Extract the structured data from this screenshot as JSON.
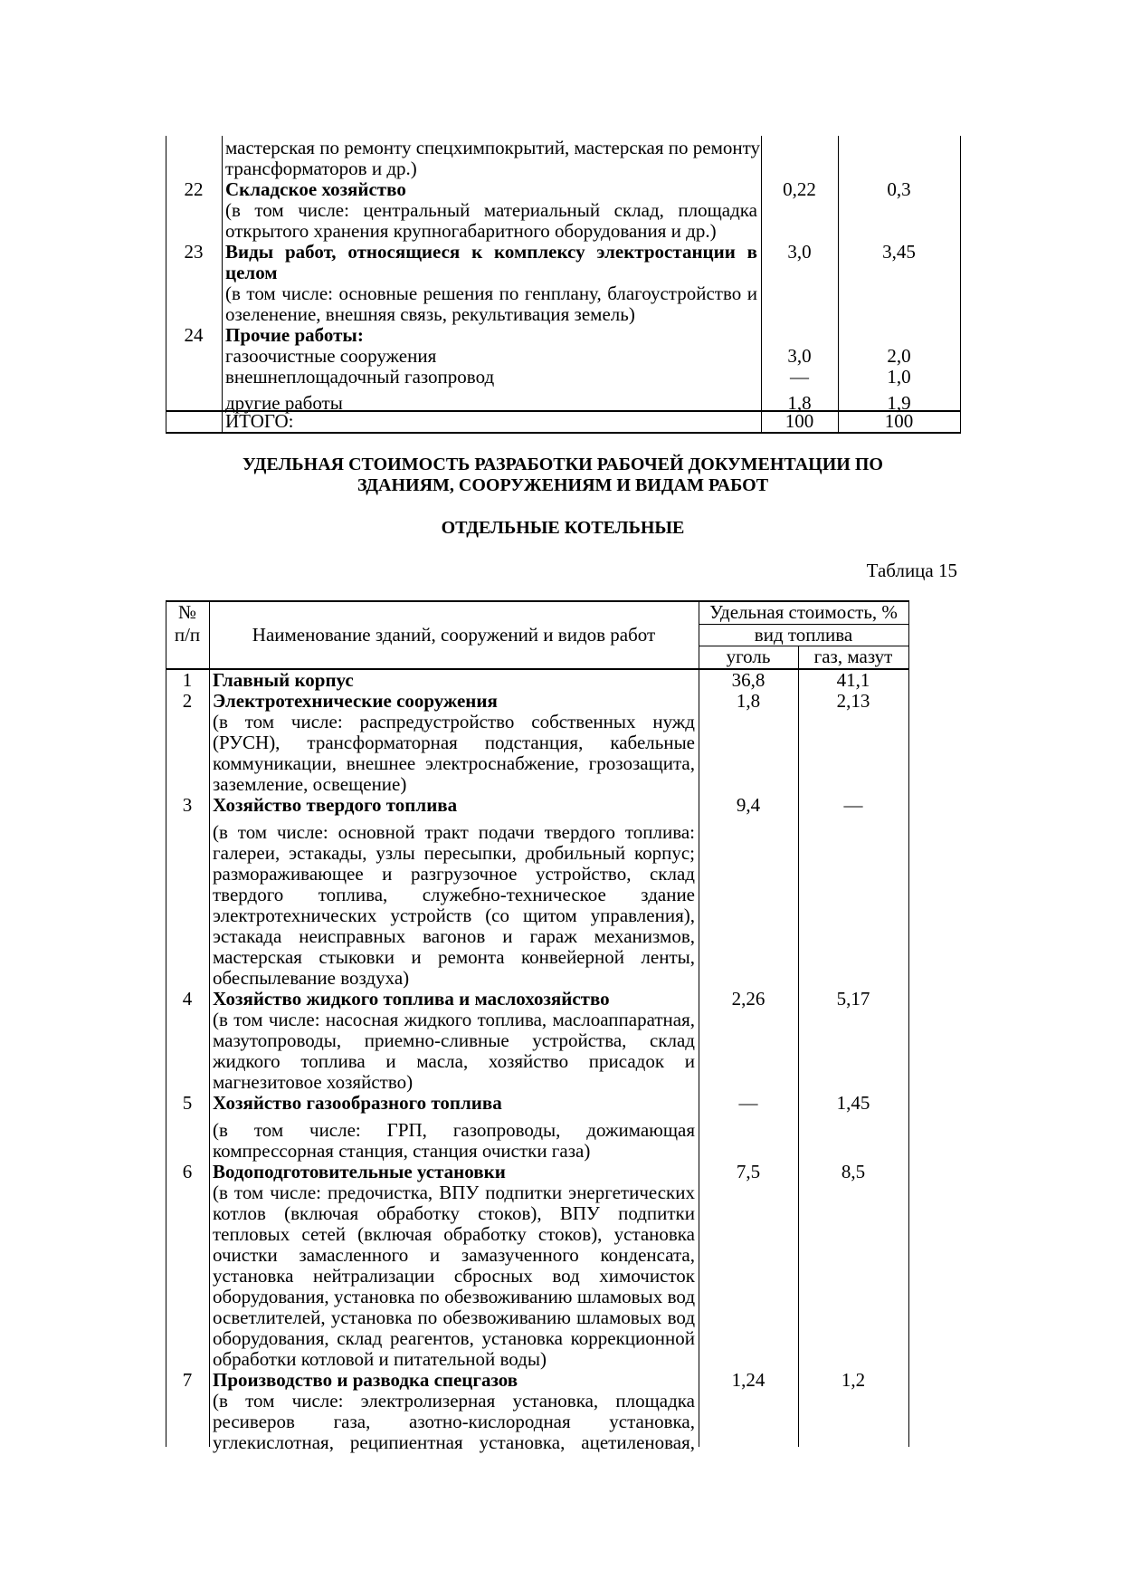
{
  "table_prev": {
    "lines": [
      {
        "n": "",
        "t": "мастерская по ремонту спецхимпокрытий, мастерская по ремонту",
        "b": false,
        "j": true,
        "c1": "",
        "c2": ""
      },
      {
        "n": "",
        "t": "трансформаторов и др.)",
        "b": false,
        "j": false,
        "c1": "",
        "c2": ""
      },
      {
        "n": "22",
        "t": "Складское хозяйство",
        "b": true,
        "j": false,
        "c1": "0,22",
        "c2": "0,3"
      },
      {
        "n": "",
        "t": "(в том числе: центральный материальный склад, площадка",
        "b": false,
        "j": true,
        "c1": "",
        "c2": ""
      },
      {
        "n": "",
        "t": "открытого хранения крупногабаритного оборудования и др.)",
        "b": false,
        "j": false,
        "c1": "",
        "c2": ""
      },
      {
        "n": "23",
        "t": "Виды работ, относящиеся к комплексу электростанции в",
        "b": true,
        "j": true,
        "c1": "3,0",
        "c2": "3,45"
      },
      {
        "n": "",
        "t": "целом",
        "b": true,
        "j": false,
        "c1": "",
        "c2": ""
      },
      {
        "n": "",
        "t": "(в том числе: основные решения по генплану, благоустройство и",
        "b": false,
        "j": true,
        "c1": "",
        "c2": ""
      },
      {
        "n": "",
        "t": "озеленение, внешняя связь, рекультивация земель)",
        "b": false,
        "j": false,
        "c1": "",
        "c2": ""
      },
      {
        "n": "24",
        "t": "Прочие работы:",
        "b": true,
        "j": false,
        "c1": "",
        "c2": ""
      },
      {
        "n": "",
        "t": "газоочистные сооружения",
        "b": false,
        "j": false,
        "c1": "3,0",
        "c2": "2,0"
      },
      {
        "n": "",
        "t": "внешнеплощадочный газопровод",
        "b": false,
        "j": false,
        "c1": "—",
        "c2": "1,0"
      },
      {
        "n": "",
        "t": "другие работы",
        "b": false,
        "j": false,
        "c1": "1,8",
        "c2": "1,9"
      }
    ],
    "total": {
      "label": "ИТОГО:",
      "c1": "100",
      "c2": "100"
    }
  },
  "heading": {
    "line1": "УДЕЛЬНАЯ СТОИМОСТЬ РАЗРАБОТКИ РАБОЧЕЙ ДОКУМЕНТАЦИИ ПО",
    "line2": "ЗДАНИЯМ, СООРУЖЕНИЯМ И ВИДАМ РАБОТ",
    "subtitle": "ОТДЕЛЬНЫЕ КОТЕЛЬНЫЕ",
    "table_label": "Таблица 15"
  },
  "table15": {
    "header": {
      "num1": "№",
      "num2": "п/п",
      "name": "Наименование зданий, сооружений и видов работ",
      "cost": "Удельная стоимость, %",
      "fuel": "вид топлива",
      "coal": "уголь",
      "gas": "газ, мазут"
    },
    "lines": [
      {
        "n": "1",
        "t": "Главный корпус",
        "b": true,
        "j": false,
        "c1": "36,8",
        "c2": "41,1"
      },
      {
        "n": "2",
        "t": "Электротехнические сооружения",
        "b": true,
        "j": false,
        "c1": "1,8",
        "c2": "2,13"
      },
      {
        "n": "",
        "t": "(в том числе: распредустройство собственных нужд",
        "b": false,
        "j": true,
        "c1": "",
        "c2": ""
      },
      {
        "n": "",
        "t": "(РУСН), трансформаторная подстанция, кабельные",
        "b": false,
        "j": true,
        "c1": "",
        "c2": ""
      },
      {
        "n": "",
        "t": "коммуникации, внешнее электроснабжение, грозозащита,",
        "b": false,
        "j": true,
        "c1": "",
        "c2": ""
      },
      {
        "n": "",
        "t": "заземление, освещение)",
        "b": false,
        "j": false,
        "c1": "",
        "c2": ""
      },
      {
        "n": "3",
        "t": "Хозяйство твердого топлива",
        "b": true,
        "j": false,
        "c1": "9,4",
        "c2": "—",
        "gap": true
      },
      {
        "n": "",
        "t": "(в том числе: основной тракт подачи твердого топлива:",
        "b": false,
        "j": true,
        "c1": "",
        "c2": ""
      },
      {
        "n": "",
        "t": "галереи, эстакады, узлы пересыпки, дробильный корпус;",
        "b": false,
        "j": true,
        "c1": "",
        "c2": ""
      },
      {
        "n": "",
        "t": "размораживающее и разгрузочное устройство, склад",
        "b": false,
        "j": true,
        "c1": "",
        "c2": ""
      },
      {
        "n": "",
        "t": "твердого топлива, служебно-техническое здание",
        "b": false,
        "j": true,
        "c1": "",
        "c2": ""
      },
      {
        "n": "",
        "t": "электротехнических устройств (со щитом управления),",
        "b": false,
        "j": true,
        "c1": "",
        "c2": ""
      },
      {
        "n": "",
        "t": "эстакада неисправных вагонов и гараж механизмов,",
        "b": false,
        "j": true,
        "c1": "",
        "c2": ""
      },
      {
        "n": "",
        "t": "мастерская стыковки и ремонта конвейерной ленты,",
        "b": false,
        "j": true,
        "c1": "",
        "c2": ""
      },
      {
        "n": "",
        "t": "обеспылевание воздуха)",
        "b": false,
        "j": false,
        "c1": "",
        "c2": ""
      },
      {
        "n": "4",
        "t": "Хозяйство жидкого топлива и маслохозяйство",
        "b": true,
        "j": false,
        "c1": "2,26",
        "c2": "5,17"
      },
      {
        "n": "",
        "t": "(в том числе: насосная жидкого топлива, маслоаппаратная,",
        "b": false,
        "j": true,
        "c1": "",
        "c2": ""
      },
      {
        "n": "",
        "t": "мазутопроводы, приемно-сливные устройства, склад",
        "b": false,
        "j": true,
        "c1": "",
        "c2": ""
      },
      {
        "n": "",
        "t": "жидкого топлива и масла, хозяйство присадок и",
        "b": false,
        "j": true,
        "c1": "",
        "c2": ""
      },
      {
        "n": "",
        "t": "магнезитовое хозяйство)",
        "b": false,
        "j": false,
        "c1": "",
        "c2": ""
      },
      {
        "n": "5",
        "t": "Хозяйство газообразного топлива",
        "b": true,
        "j": false,
        "c1": "—",
        "c2": "1,45",
        "gap": true
      },
      {
        "n": "",
        "t": "(в том числе: ГРП, газопроводы, дожимающая",
        "b": false,
        "j": true,
        "c1": "",
        "c2": ""
      },
      {
        "n": "",
        "t": "компрессорная станция, станция очистки газа)",
        "b": false,
        "j": false,
        "c1": "",
        "c2": ""
      },
      {
        "n": "6",
        "t": "Водоподготовительные установки",
        "b": true,
        "j": false,
        "c1": "7,5",
        "c2": "8,5"
      },
      {
        "n": "",
        "t": "(в том числе: предочистка, ВПУ подпитки энергетических",
        "b": false,
        "j": true,
        "c1": "",
        "c2": ""
      },
      {
        "n": "",
        "t": "котлов (включая обработку стоков), ВПУ подпитки",
        "b": false,
        "j": true,
        "c1": "",
        "c2": ""
      },
      {
        "n": "",
        "t": "тепловых сетей (включая обработку стоков), установка",
        "b": false,
        "j": true,
        "c1": "",
        "c2": ""
      },
      {
        "n": "",
        "t": "очистки замасленного и замазученного конденсата,",
        "b": false,
        "j": true,
        "c1": "",
        "c2": ""
      },
      {
        "n": "",
        "t": "установка нейтрализации сбросных вод химочисток",
        "b": false,
        "j": true,
        "c1": "",
        "c2": ""
      },
      {
        "n": "",
        "t": "оборудования, установка по обезвоживанию шламовых вод",
        "b": false,
        "j": true,
        "c1": "",
        "c2": ""
      },
      {
        "n": "",
        "t": "осветлителей, установка по обезвоживанию шламовых вод",
        "b": false,
        "j": true,
        "c1": "",
        "c2": ""
      },
      {
        "n": "",
        "t": "оборудования, склад реагентов, установка коррекционной",
        "b": false,
        "j": true,
        "c1": "",
        "c2": ""
      },
      {
        "n": "",
        "t": "обработки котловой и питательной воды)",
        "b": false,
        "j": false,
        "c1": "",
        "c2": ""
      },
      {
        "n": "7",
        "t": "Производство и разводка спецгазов",
        "b": true,
        "j": false,
        "c1": "1,24",
        "c2": "1,2"
      },
      {
        "n": "",
        "t": "(в том числе: электролизерная установка, площадка",
        "b": false,
        "j": true,
        "c1": "",
        "c2": ""
      },
      {
        "n": "",
        "t": "ресиверов газа, азотно-кислородная установка,",
        "b": false,
        "j": true,
        "c1": "",
        "c2": ""
      },
      {
        "n": "",
        "t": "углекислотная, реципиентная установка, ацетиленовая,",
        "b": false,
        "j": true,
        "c1": "",
        "c2": ""
      }
    ]
  }
}
